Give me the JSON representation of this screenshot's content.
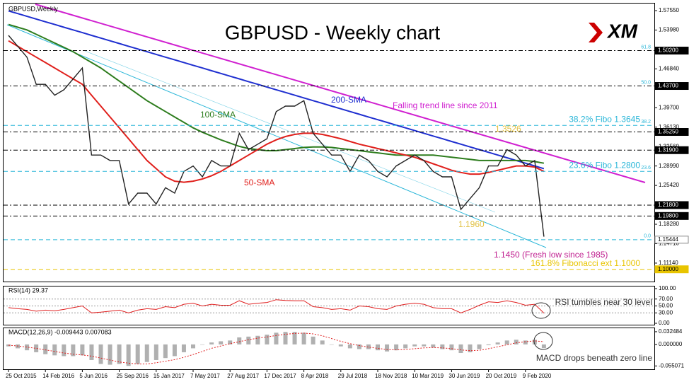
{
  "logo": "XM",
  "chart_data": [
    {
      "type": "line",
      "symbol": "GBPUSD,Weekly",
      "title": "GBPUSD - Weekly chart",
      "categories": [
        "25 Oct 2015",
        null,
        null,
        null,
        "14 Feb 2016",
        null,
        null,
        null,
        "5 Jun 2016",
        null,
        null,
        null,
        "25 Sep 2016",
        null,
        null,
        null,
        "15 Jan 2017",
        null,
        null,
        null,
        "7 May 2017",
        null,
        null,
        null,
        "27 Aug 2017",
        null,
        null,
        null,
        "17 Dec 2017",
        null,
        null,
        null,
        "8 Apr 2018",
        null,
        null,
        null,
        "29 Jul 2018",
        null,
        null,
        null,
        "18 Nov 2018",
        null,
        null,
        null,
        "10 Mar 2019",
        null,
        null,
        null,
        "30 Jun 2019",
        null,
        null,
        null,
        "20 Oct 2019",
        null,
        null,
        null,
        "9 Feb 2020",
        null,
        null
      ],
      "values": [
        1.53,
        1.51,
        1.49,
        1.44,
        1.44,
        1.42,
        1.43,
        1.45,
        1.47,
        1.31,
        1.31,
        1.3,
        1.3,
        1.22,
        1.24,
        1.24,
        1.22,
        1.25,
        1.24,
        1.28,
        1.29,
        1.27,
        1.3,
        1.29,
        1.29,
        1.35,
        1.32,
        1.33,
        1.34,
        1.39,
        1.4,
        1.4,
        1.41,
        1.35,
        1.33,
        1.31,
        1.31,
        1.28,
        1.31,
        1.3,
        1.28,
        1.27,
        1.29,
        1.3,
        1.31,
        1.3,
        1.28,
        1.27,
        1.27,
        1.21,
        1.23,
        1.25,
        1.29,
        1.29,
        1.32,
        1.31,
        1.29,
        1.3,
        1.16
      ],
      "color": "#222222",
      "series": [
        {
          "name": "200-SMA",
          "color": "#1f2fd0",
          "values": [
            1.575,
            1.57,
            1.565,
            1.56,
            1.555,
            1.55,
            1.545,
            1.54,
            1.535,
            1.53,
            1.525,
            1.52,
            1.515,
            1.51,
            1.505,
            1.5,
            1.495,
            1.49,
            1.485,
            1.48,
            1.475,
            1.47,
            1.465,
            1.46,
            1.455,
            1.45,
            1.445,
            1.44,
            1.435,
            1.43,
            1.425,
            1.42,
            1.415,
            1.41,
            1.405,
            1.4,
            1.395,
            1.39,
            1.385,
            1.38,
            1.375,
            1.37,
            1.365,
            1.36,
            1.355,
            1.35,
            1.345,
            1.34,
            1.335,
            1.33,
            1.325,
            1.32,
            1.315,
            1.31,
            1.305,
            1.3,
            1.295,
            1.29,
            1.285
          ]
        },
        {
          "name": "100-SMA",
          "color": "#2e7d1e",
          "values": [
            1.55,
            1.545,
            1.54,
            1.532,
            1.524,
            1.516,
            1.508,
            1.5,
            1.49,
            1.48,
            1.47,
            1.458,
            1.446,
            1.434,
            1.422,
            1.41,
            1.4,
            1.39,
            1.38,
            1.37,
            1.36,
            1.352,
            1.345,
            1.338,
            1.332,
            1.326,
            1.322,
            1.32,
            1.318,
            1.318,
            1.32,
            1.322,
            1.324,
            1.325,
            1.325,
            1.324,
            1.322,
            1.32,
            1.318,
            1.316,
            1.314,
            1.312,
            1.31,
            1.31,
            1.31,
            1.31,
            1.31,
            1.308,
            1.306,
            1.304,
            1.302,
            1.3,
            1.3,
            1.3,
            1.3,
            1.3,
            1.3,
            1.298,
            1.295
          ]
        },
        {
          "name": "50-SMA",
          "color": "#e0201c",
          "values": [
            1.52,
            1.51,
            1.5,
            1.49,
            1.48,
            1.47,
            1.46,
            1.45,
            1.44,
            1.42,
            1.4,
            1.38,
            1.36,
            1.34,
            1.32,
            1.3,
            1.285,
            1.27,
            1.262,
            1.26,
            1.262,
            1.266,
            1.272,
            1.28,
            1.29,
            1.3,
            1.31,
            1.32,
            1.33,
            1.338,
            1.344,
            1.348,
            1.35,
            1.35,
            1.348,
            1.344,
            1.34,
            1.335,
            1.33,
            1.326,
            1.322,
            1.318,
            1.314,
            1.31,
            1.306,
            1.3,
            1.294,
            1.288,
            1.282,
            1.278,
            1.275,
            1.275,
            1.278,
            1.282,
            1.286,
            1.29,
            1.29,
            1.288,
            1.28
          ]
        }
      ],
      "ylim": [
        1.0775,
        1.5885
      ],
      "yticks": [
        {
          "value": 1.5755,
          "label": "1.57550"
        },
        {
          "value": 1.5398,
          "label": "1.53980"
        },
        {
          "value": 1.4684,
          "label": "1.46840"
        },
        {
          "value": 1.397,
          "label": "1.39700"
        },
        {
          "value": 1.3613,
          "label": "1.36130"
        },
        {
          "value": 1.3256,
          "label": "1.32560"
        },
        {
          "value": 1.2899,
          "label": "1.28990"
        },
        {
          "value": 1.2542,
          "label": "1.25420"
        },
        {
          "value": 1.1828,
          "label": "1.18280"
        },
        {
          "value": 1.1471,
          "label": "1.14710"
        },
        {
          "value": 1.1114,
          "label": "1.11140"
        }
      ],
      "levels": [
        {
          "value": 1.502,
          "label": "1.50200",
          "color": "#000000",
          "tag": "61.8"
        },
        {
          "value": 1.437,
          "label": "1.43700",
          "color": "#000000",
          "tag": "50.0"
        },
        {
          "value": 1.3645,
          "color": "#29b6d8",
          "tag": "38.2",
          "text": "38.2% Fibo 1.3645"
        },
        {
          "value": 1.3525,
          "label": "1.35250",
          "color": "#000000"
        },
        {
          "value": 1.319,
          "label": "1.31900",
          "color": "#000000"
        },
        {
          "value": 1.28,
          "color": "#29b6d8",
          "tag": "23.6",
          "text": "23.6% Fibo 1.2800"
        },
        {
          "value": 1.218,
          "label": "1.21800",
          "color": "#000000"
        },
        {
          "value": 1.198,
          "label": "1.19800",
          "color": "#000000"
        },
        {
          "value": 1.15444,
          "label": "1.15444",
          "color": "#29b6d8",
          "tag": "0.0"
        },
        {
          "value": 1.1,
          "label": "1.10000",
          "color": "#e8c400",
          "text": "161.8% Fibonacci ext 1.1000"
        }
      ],
      "annotations": [
        {
          "text": "Falling trend line since 2011",
          "color": "#d020d0"
        },
        {
          "text": "1.3526",
          "color": "#e0c040"
        },
        {
          "text": "1.1960",
          "color": "#e0c040"
        },
        {
          "text": "1.1450 (Fresh low since 1985)",
          "color": "#c02090"
        }
      ]
    },
    {
      "type": "line",
      "title": "RSI(14) 29.37",
      "color": "#e02020",
      "values": [
        45,
        42,
        40,
        35,
        38,
        36,
        40,
        45,
        50,
        30,
        32,
        35,
        38,
        30,
        38,
        42,
        40,
        48,
        45,
        55,
        58,
        50,
        55,
        52,
        52,
        65,
        55,
        58,
        60,
        68,
        66,
        65,
        65,
        48,
        45,
        40,
        42,
        38,
        50,
        48,
        42,
        40,
        50,
        55,
        58,
        55,
        45,
        42,
        42,
        30,
        40,
        52,
        62,
        60,
        65,
        60,
        52,
        55,
        29.37
      ],
      "ylim": [
        0,
        100
      ],
      "yticks": [
        {
          "value": 100,
          "label": "100.00"
        },
        {
          "value": 70,
          "label": "70.00"
        },
        {
          "value": 50,
          "label": "50.00"
        },
        {
          "value": 30,
          "label": "30.00"
        },
        {
          "value": 0,
          "label": "0.00"
        }
      ],
      "annotation": "RSI tumbles near 30 level"
    },
    {
      "type": "macd",
      "title": "MACD(12,26,9) -0.009443 0.007083",
      "series": [
        {
          "color": "#b0b0b0",
          "values": [
            -0.005,
            -0.01,
            -0.015,
            -0.02,
            -0.025,
            -0.028,
            -0.03,
            -0.03,
            -0.028,
            -0.04,
            -0.05,
            -0.052,
            -0.05,
            -0.055,
            -0.05,
            -0.045,
            -0.04,
            -0.035,
            -0.03,
            -0.02,
            -0.01,
            0.0,
            0.005,
            0.008,
            0.01,
            0.018,
            0.02,
            0.022,
            0.025,
            0.03,
            0.032,
            0.032,
            0.03,
            0.02,
            0.01,
            0.0,
            -0.005,
            -0.01,
            -0.012,
            -0.012,
            -0.015,
            -0.018,
            -0.015,
            -0.01,
            -0.005,
            -0.005,
            -0.008,
            -0.012,
            -0.015,
            -0.022,
            -0.02,
            -0.012,
            -0.002,
            0.005,
            0.01,
            0.012,
            0.01,
            0.012,
            -0.009443
          ]
        },
        {
          "color": "#e02020",
          "values": [
            -0.002,
            -0.004,
            -0.007,
            -0.01,
            -0.014,
            -0.018,
            -0.022,
            -0.025,
            -0.027,
            -0.03,
            -0.035,
            -0.04,
            -0.045,
            -0.048,
            -0.05,
            -0.05,
            -0.047,
            -0.043,
            -0.039,
            -0.033,
            -0.026,
            -0.018,
            -0.01,
            -0.004,
            0.002,
            0.007,
            0.012,
            0.016,
            0.019,
            0.023,
            0.026,
            0.028,
            0.029,
            0.027,
            0.022,
            0.015,
            0.008,
            0.002,
            -0.003,
            -0.007,
            -0.01,
            -0.013,
            -0.014,
            -0.013,
            -0.011,
            -0.009,
            -0.008,
            -0.009,
            -0.011,
            -0.014,
            -0.016,
            -0.015,
            -0.011,
            -0.006,
            -0.001,
            0.004,
            0.007,
            0.009,
            0.007083
          ]
        }
      ],
      "ylim": [
        -0.06,
        0.036
      ],
      "yticks": [
        {
          "value": 0.032484,
          "label": "0.032484"
        },
        {
          "value": 0,
          "label": "0.000000"
        },
        {
          "value": -0.055071,
          "label": "-0.055071"
        }
      ],
      "annotation": "MACD drops beneath zero line"
    }
  ]
}
